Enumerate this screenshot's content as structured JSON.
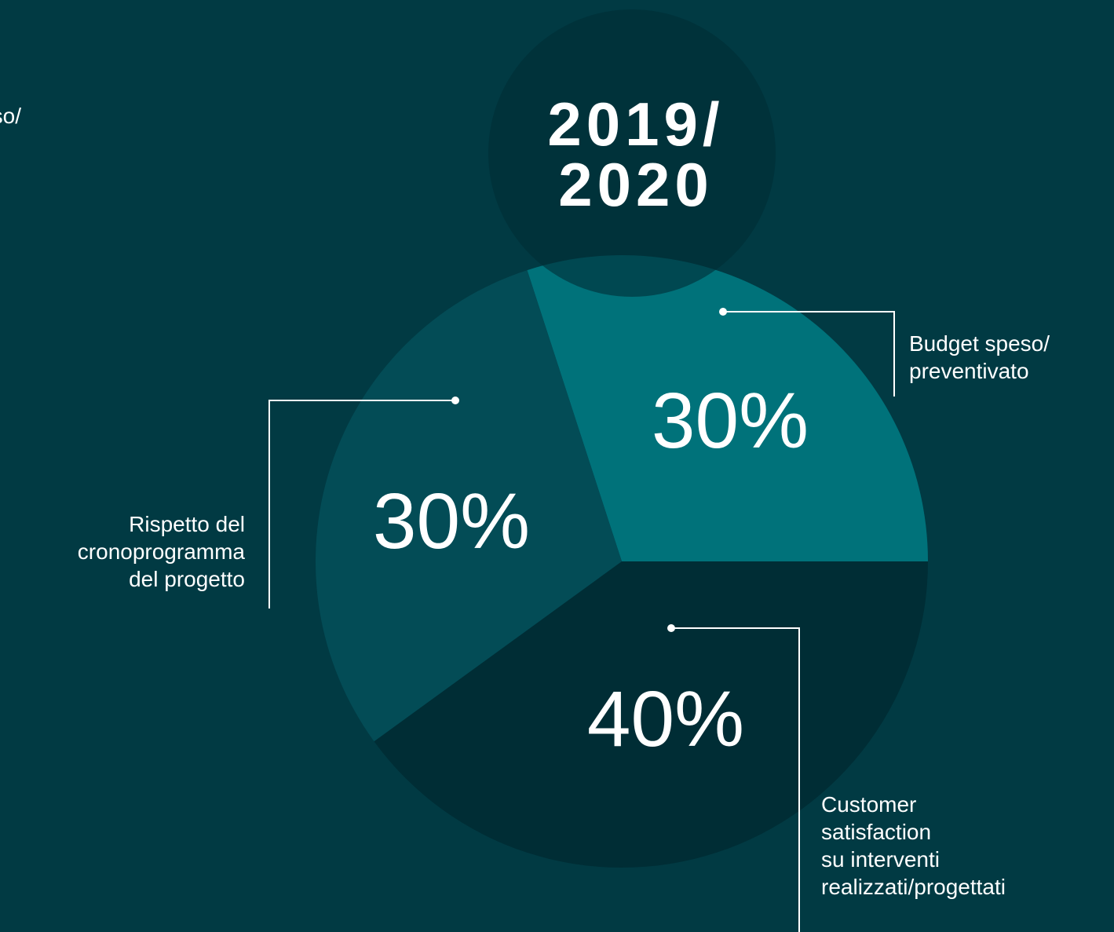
{
  "chart_data": {
    "type": "pie",
    "title": [
      "2019/",
      "2020"
    ],
    "categories": [
      [
        "Budget speso/",
        "preventivato"
      ],
      [
        "Customer",
        "satisfaction",
        "su interventi",
        "realizzati/progettati"
      ],
      [
        "Rispetto del",
        "cronoprogramma",
        "del progetto"
      ]
    ],
    "values": [
      30,
      40,
      30
    ],
    "value_labels": [
      "30%",
      "40%",
      "30%"
    ],
    "colors": [
      "#00727a",
      "#002d35",
      "#034c56"
    ],
    "partial_label": [
      "Budget speso/",
      "preventivato"
    ]
  }
}
